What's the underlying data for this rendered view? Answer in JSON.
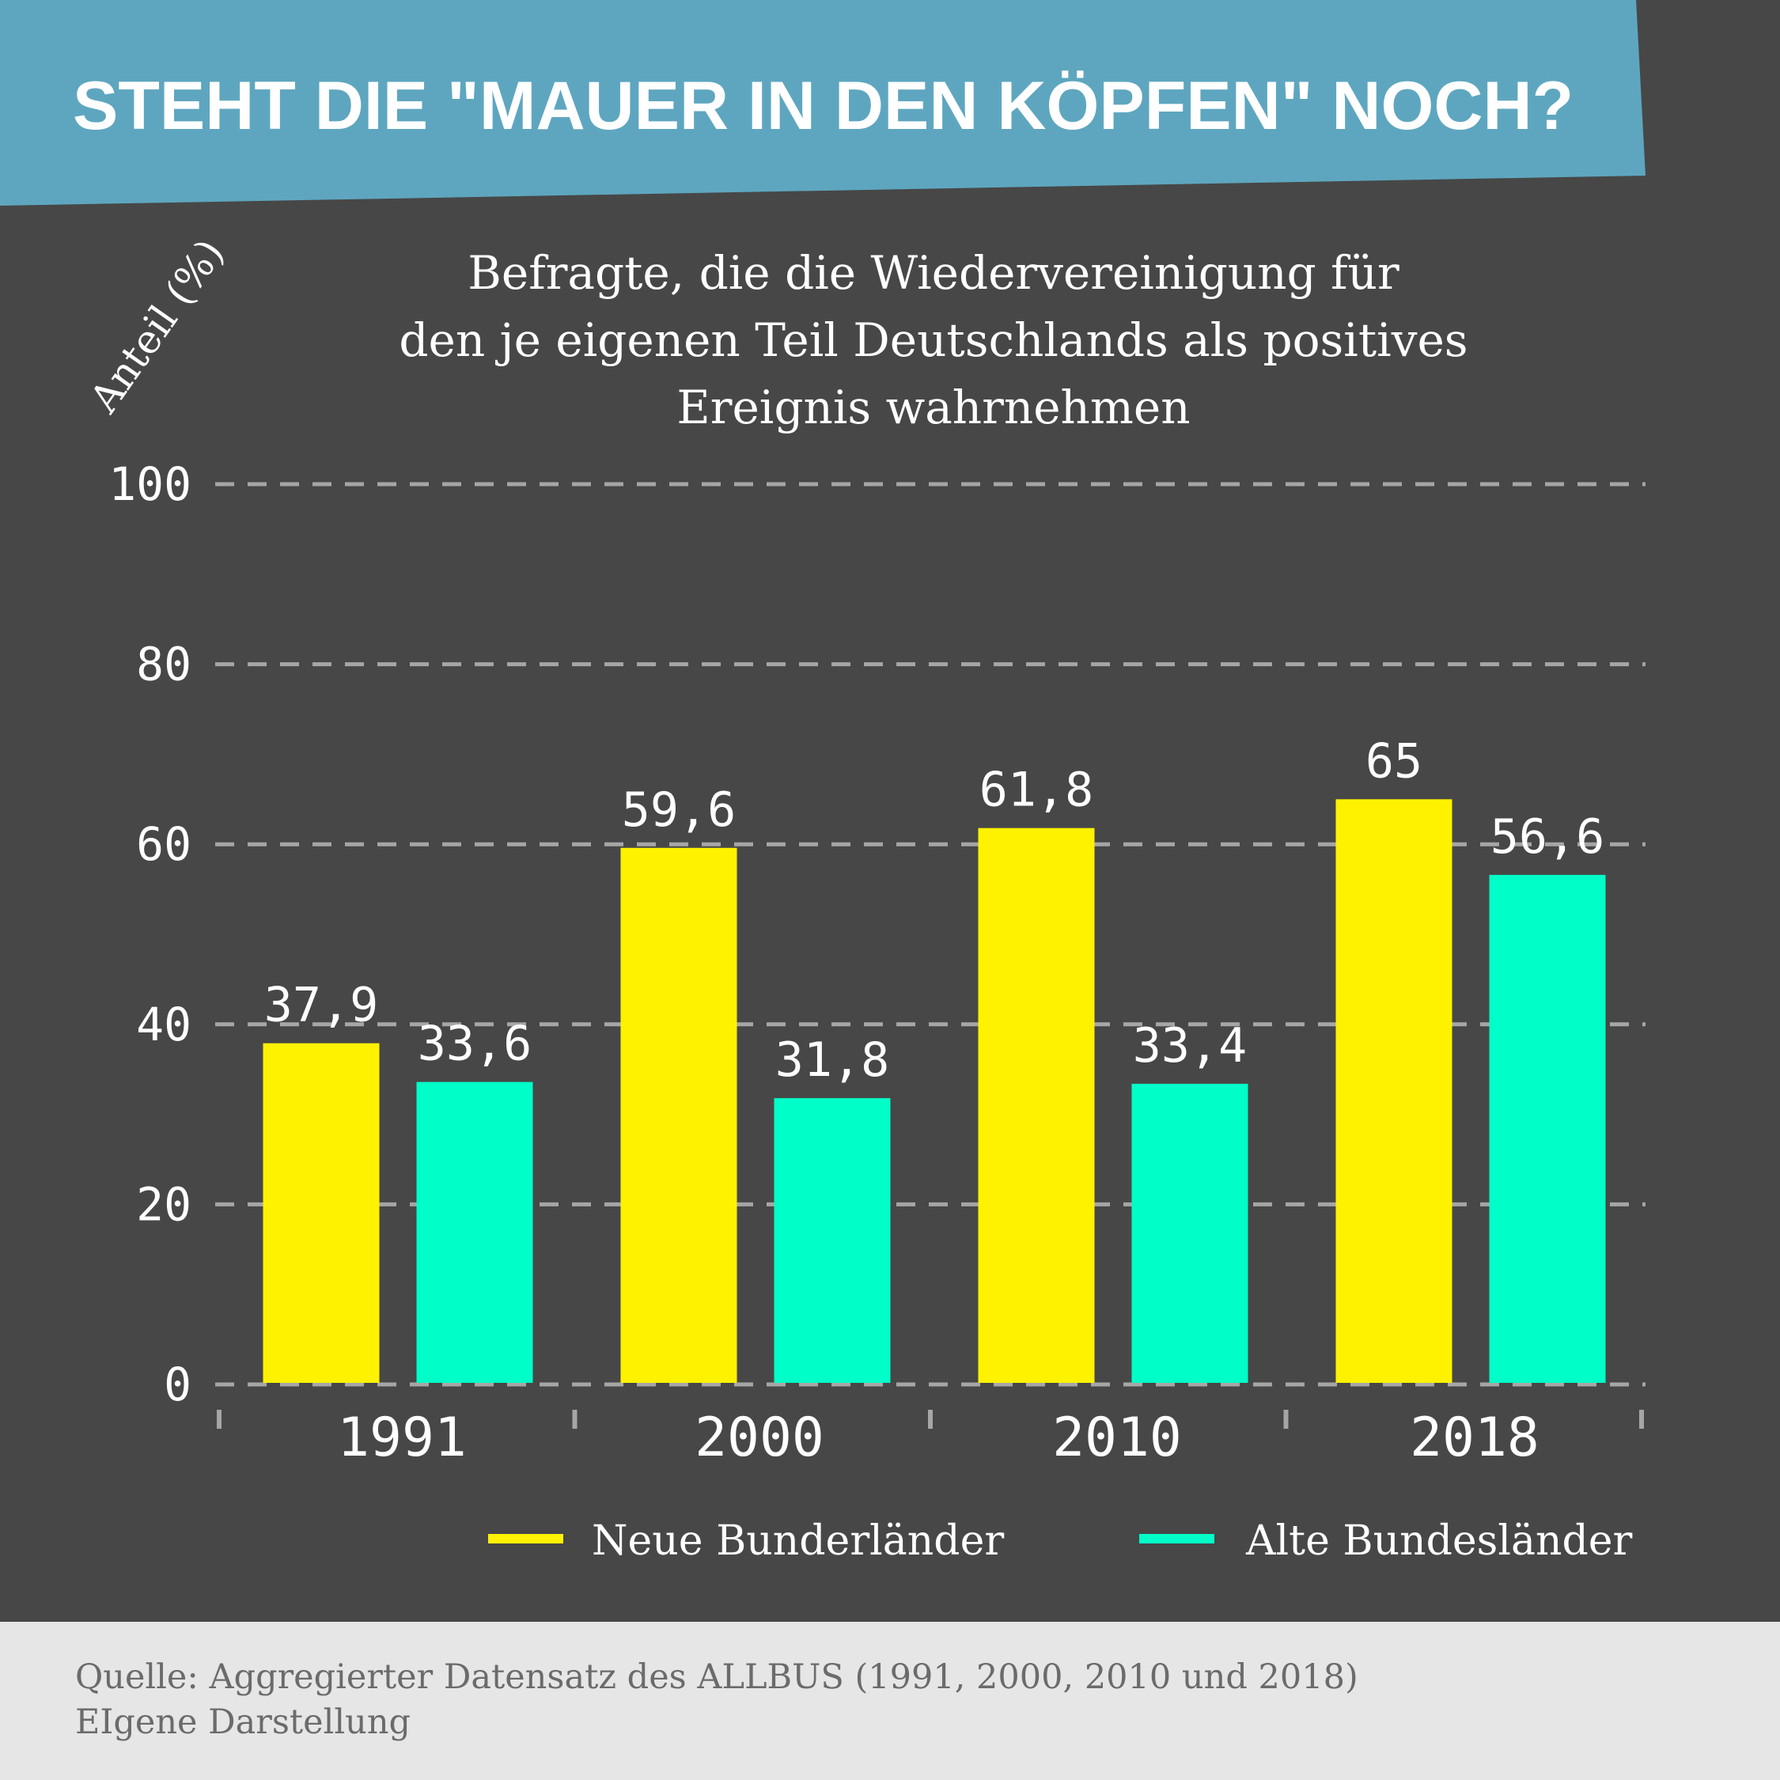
{
  "colors": {
    "background": "#474747",
    "banner": "#5ea6bf",
    "title_text": "#ffffff",
    "grid": "#a6a6a6",
    "neue": "#fff200",
    "alte": "#00ffc8",
    "footer_bg": "#e6e6e6",
    "footer_text": "#6b6b6b"
  },
  "header": {
    "title": "STEHT DIE \"MAUER IN DEN KÖPFEN\" NOCH?"
  },
  "chart_data": {
    "type": "bar",
    "subtitle_lines": [
      "Befragte, die die Wiedervereinigung für",
      "den je eigenen Teil Deutschlands als positives",
      "Ereignis wahrnehmen"
    ],
    "ylabel": "Anteil (%)",
    "xlabel": "",
    "ylim": [
      0,
      100
    ],
    "yticks": [
      0,
      20,
      40,
      60,
      80,
      100
    ],
    "grid": true,
    "categories": [
      "1991",
      "2000",
      "2010",
      "2018"
    ],
    "series": [
      {
        "name": "Neue Bunderländer",
        "color": "#fff200",
        "values": [
          37.9,
          59.6,
          61.8,
          65
        ],
        "labels": [
          "37,9",
          "59,6",
          "61,8",
          "65"
        ]
      },
      {
        "name": "Alte Bundesländer",
        "color": "#00ffc8",
        "values": [
          33.6,
          31.8,
          33.4,
          56.6
        ],
        "labels": [
          "33,6",
          "31,8",
          "33,4",
          "56,6"
        ]
      }
    ],
    "legend_position": "bottom-right"
  },
  "footer": {
    "source": "Quelle: Aggregierter Datensatz des ALLBUS (1991, 2000, 2010 und 2018)",
    "note": "EIgene Darstellung"
  }
}
